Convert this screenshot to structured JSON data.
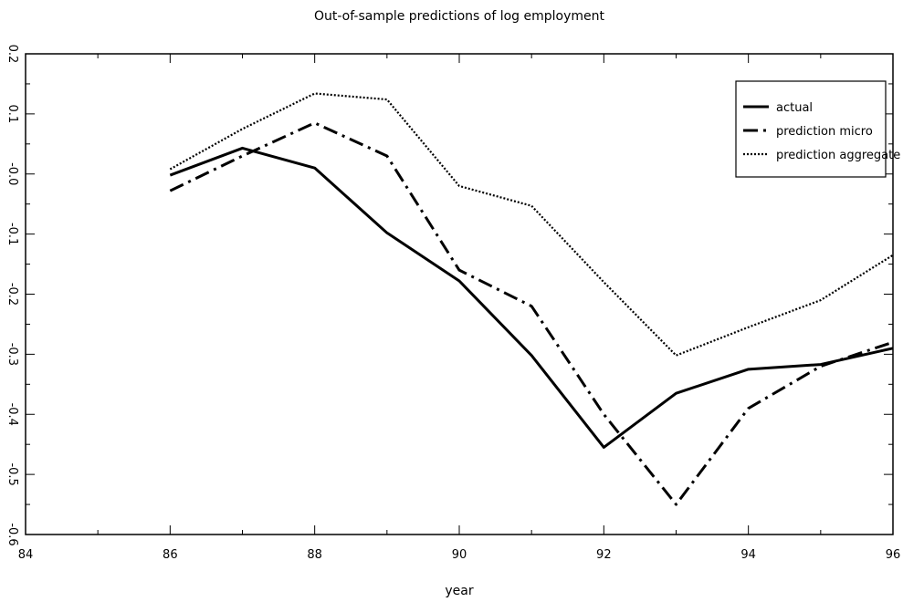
{
  "chart_data": {
    "type": "line",
    "title": "Out-of-sample predictions of log employment",
    "xlabel": "year",
    "ylabel": "",
    "xlim": [
      84,
      96
    ],
    "ylim": [
      -0.6,
      0.2
    ],
    "xticks": [
      84,
      86,
      88,
      90,
      92,
      94,
      96
    ],
    "xtick_labels": [
      "84",
      "86",
      "88",
      "90",
      "92",
      "94",
      "96"
    ],
    "yticks": [
      0.2,
      0.1,
      0.0,
      -0.1,
      -0.2,
      -0.3,
      -0.4,
      -0.5,
      -0.6
    ],
    "ytick_labels": [
      "0.2",
      "0.1",
      "-0.0",
      "-0.1",
      "-0.2",
      "-0.3",
      "-0.4",
      "-0.5",
      "-0.6"
    ],
    "grid": false,
    "legend_position": "top-right",
    "series": [
      {
        "name": "actual",
        "style": "solid",
        "color": "#000000",
        "x": [
          86,
          87,
          88,
          89,
          90,
          91,
          92,
          93,
          94,
          95,
          96
        ],
        "y": [
          -0.002,
          0.043,
          0.01,
          -0.098,
          -0.178,
          -0.302,
          -0.455,
          -0.365,
          -0.325,
          -0.317,
          -0.29
        ]
      },
      {
        "name": "prediction micro",
        "style": "dashdot",
        "color": "#000000",
        "x": [
          86,
          87,
          88,
          89,
          90,
          91,
          92,
          93,
          94,
          95,
          96
        ],
        "y": [
          -0.028,
          0.03,
          0.085,
          0.03,
          -0.16,
          -0.22,
          -0.4,
          -0.55,
          -0.39,
          -0.32,
          -0.28
        ]
      },
      {
        "name": "prediction aggregate",
        "style": "dotted",
        "color": "#000000",
        "x": [
          86,
          87,
          88,
          89,
          90,
          91,
          92,
          93,
          94,
          95,
          96
        ],
        "y": [
          0.008,
          0.075,
          0.134,
          0.124,
          -0.02,
          -0.053,
          -0.18,
          -0.302,
          -0.255,
          -0.21,
          -0.135
        ]
      }
    ]
  }
}
